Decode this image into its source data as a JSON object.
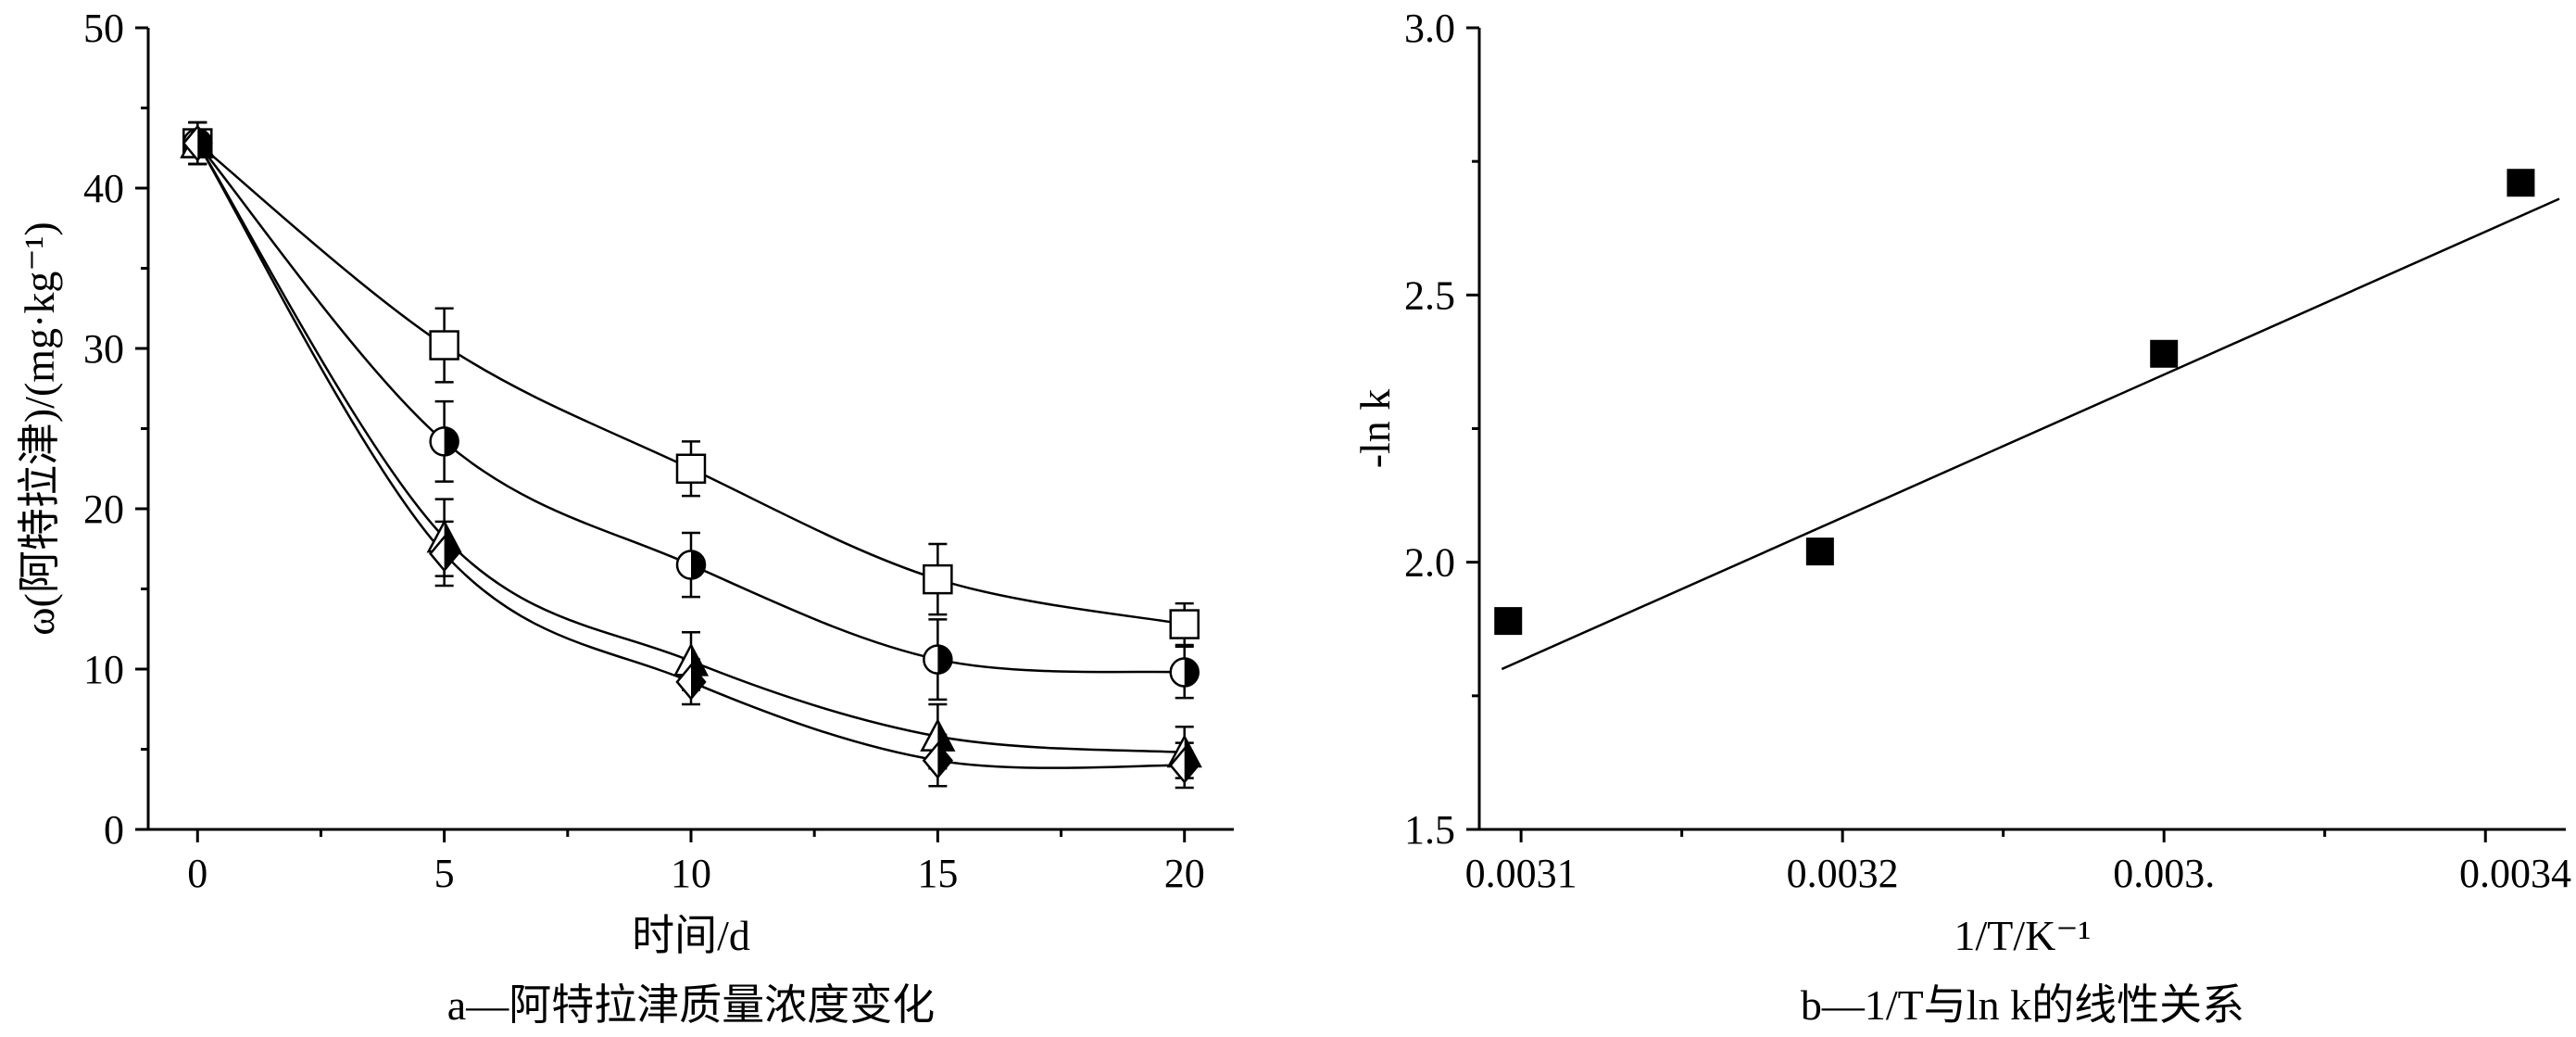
{
  "chart_data": [
    {
      "type": "scatter",
      "panel_caption": "a—阿特拉津质量浓度变化",
      "xlabel": "时间/d",
      "ylabel": "ω(阿特拉津)/(mg·kg⁻¹)",
      "xlim": [
        -1,
        21
      ],
      "ylim": [
        0,
        50
      ],
      "xticks": [
        0,
        5,
        10,
        15,
        20
      ],
      "yticks": [
        0,
        10,
        20,
        30,
        40,
        50
      ],
      "xtick_labels": [
        "0",
        "5",
        "10",
        "15",
        "20"
      ],
      "ytick_labels": [
        "0",
        "10",
        "20",
        "30",
        "40",
        "50"
      ],
      "grid": false,
      "colors": {
        "axis": "#000000",
        "marker_fill": "#000000",
        "marker_open": "#ffffff"
      },
      "series": [
        {
          "marker": "open-square",
          "x": [
            0,
            5,
            10,
            15,
            20
          ],
          "y": [
            42.8,
            30.2,
            22.5,
            15.6,
            12.8
          ],
          "err": [
            1.3,
            2.3,
            1.7,
            2.2,
            1.3
          ],
          "fit": true
        },
        {
          "marker": "half-circle",
          "x": [
            0,
            5,
            10,
            15,
            20
          ],
          "y": [
            42.8,
            24.2,
            16.5,
            10.6,
            9.8
          ],
          "err": [
            1.3,
            2.5,
            2.0,
            2.5,
            1.6
          ],
          "fit": true
        },
        {
          "marker": "half-triangle",
          "x": [
            0,
            5,
            10,
            15,
            20
          ],
          "y": [
            42.8,
            18.2,
            10.5,
            5.8,
            4.8
          ],
          "err": [
            1.3,
            2.4,
            1.8,
            2.0,
            1.6
          ],
          "fit": true
        },
        {
          "marker": "half-diamond",
          "x": [
            0,
            5,
            10,
            15,
            20
          ],
          "y": [
            42.8,
            17.2,
            9.2,
            4.3,
            4.0
          ],
          "err": [
            1.3,
            2.0,
            1.4,
            1.6,
            1.4
          ],
          "fit": true
        }
      ]
    },
    {
      "type": "scatter",
      "panel_caption": "b—1/T与ln k的线性关系",
      "xlabel": "1/T/K⁻¹",
      "ylabel": "-ln k",
      "xlim": [
        0.003087,
        0.003425
      ],
      "ylim": [
        1.5,
        3.0
      ],
      "xticks": [
        0.0031,
        0.0032,
        0.0033,
        0.0034
      ],
      "yticks": [
        1.5,
        2.0,
        2.5,
        3.0
      ],
      "xtick_labels": [
        "0.0031",
        "0.0032",
        "0.003.",
        "0.0034"
      ],
      "ytick_labels": [
        "1.5",
        "2.0",
        "2.5",
        "3.0"
      ],
      "grid": false,
      "colors": {
        "axis": "#000000",
        "marker_fill": "#000000"
      },
      "series": [
        {
          "marker": "filled-square",
          "x": [
            0.003096,
            0.003193,
            0.0033,
            0.003411
          ],
          "y": [
            1.89,
            2.02,
            2.39,
            2.71
          ]
        }
      ],
      "fit_line": {
        "x": [
          0.003094,
          0.003423
        ],
        "y": [
          1.8,
          2.68
        ]
      }
    }
  ]
}
